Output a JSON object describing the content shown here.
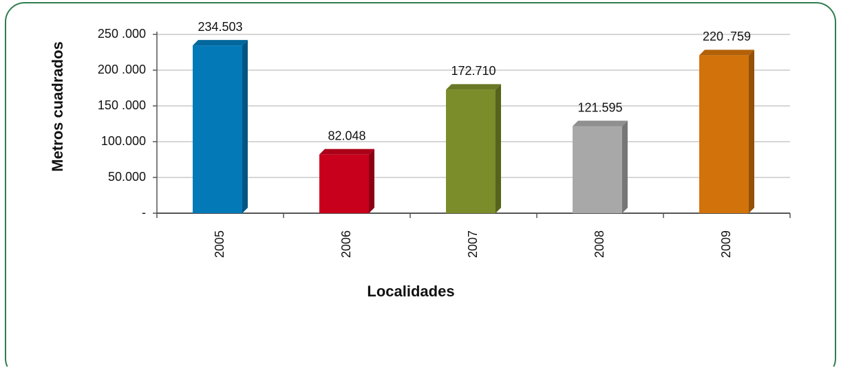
{
  "chart_data": {
    "type": "bar",
    "categories": [
      "2005",
      "2006",
      "2007",
      "2008",
      "2009"
    ],
    "values": [
      234503,
      82048,
      172710,
      121595,
      220759
    ],
    "value_labels": [
      "234.503",
      "82.048",
      "172.710",
      "121.595",
      "220 .759"
    ],
    "colors": [
      "#0479b8",
      "#c8001c",
      "#7a8d2a",
      "#a8a8a8",
      "#d2720a"
    ],
    "x_label": "Localidades",
    "y_label": "Metros cuadrados",
    "ylim": [
      0,
      250000
    ],
    "yticks": [
      {
        "value": 0,
        "label": "-"
      },
      {
        "value": 50000,
        "label": "50.000"
      },
      {
        "value": 100000,
        "label": "100.000"
      },
      {
        "value": 150000,
        "label": "150 .000"
      },
      {
        "value": 200000,
        "label": "200 .000"
      },
      {
        "value": 250000,
        "label": "250 .000"
      }
    ],
    "grid": true
  }
}
